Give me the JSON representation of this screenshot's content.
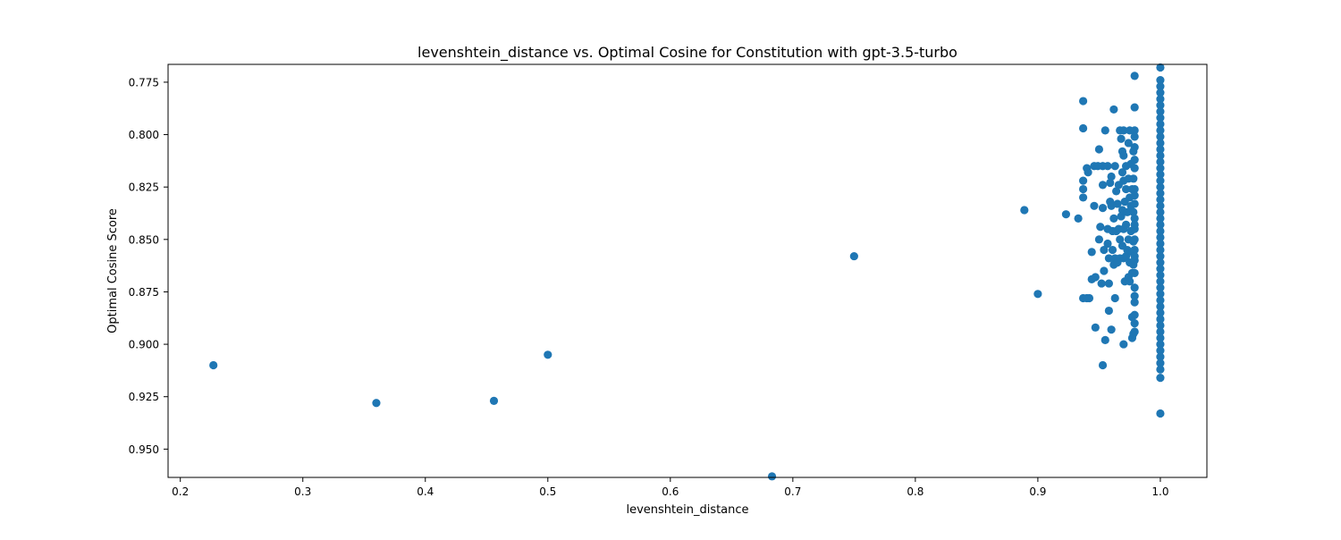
{
  "chart_data": {
    "type": "scatter",
    "title": "levenshtein_distance vs. Optimal Cosine for Constitution with gpt-3.5-turbo",
    "xlabel": "levenshtein_distance",
    "ylabel": "Optimal Cosine Score",
    "xlim": [
      0.19,
      1.038
    ],
    "ylim": [
      0.9635,
      0.7665
    ],
    "y_inverted": true,
    "grid": false,
    "legend": "none",
    "x_ticks": [
      0.2,
      0.3,
      0.4,
      0.5,
      0.6,
      0.7,
      0.8,
      0.9,
      1.0
    ],
    "x_tick_labels": [
      "0.2",
      "0.3",
      "0.4",
      "0.5",
      "0.6",
      "0.7",
      "0.8",
      "0.9",
      "1.0"
    ],
    "y_ticks": [
      0.775,
      0.8,
      0.825,
      0.85,
      0.875,
      0.9,
      0.925,
      0.95
    ],
    "y_tick_labels": [
      "0.775",
      "0.800",
      "0.825",
      "0.850",
      "0.875",
      "0.900",
      "0.925",
      "0.950"
    ],
    "series": [
      {
        "color": "#1f77b4",
        "points": [
          [
            0.227,
            0.91
          ],
          [
            0.36,
            0.928
          ],
          [
            0.456,
            0.927
          ],
          [
            0.5,
            0.905
          ],
          [
            0.683,
            0.963
          ],
          [
            0.75,
            0.858
          ],
          [
            0.889,
            0.836
          ],
          [
            0.9,
            0.876
          ],
          [
            0.923,
            0.838
          ],
          [
            0.933,
            0.84
          ],
          [
            0.937,
            0.784
          ],
          [
            0.937,
            0.797
          ],
          [
            0.937,
            0.822
          ],
          [
            0.937,
            0.826
          ],
          [
            0.937,
            0.83
          ],
          [
            0.937,
            0.878
          ],
          [
            0.94,
            0.878
          ],
          [
            0.94,
            0.816
          ],
          [
            0.941,
            0.818
          ],
          [
            0.942,
            0.878
          ],
          [
            0.944,
            0.856
          ],
          [
            0.944,
            0.869
          ],
          [
            0.946,
            0.834
          ],
          [
            0.946,
            0.815
          ],
          [
            0.947,
            0.868
          ],
          [
            0.947,
            0.892
          ],
          [
            0.949,
            0.815
          ],
          [
            0.95,
            0.807
          ],
          [
            0.95,
            0.85
          ],
          [
            0.951,
            0.844
          ],
          [
            0.952,
            0.871
          ],
          [
            0.953,
            0.815
          ],
          [
            0.953,
            0.824
          ],
          [
            0.953,
            0.835
          ],
          [
            0.953,
            0.91
          ],
          [
            0.954,
            0.855
          ],
          [
            0.954,
            0.865
          ],
          [
            0.955,
            0.798
          ],
          [
            0.955,
            0.898
          ],
          [
            0.957,
            0.815
          ],
          [
            0.957,
            0.845
          ],
          [
            0.957,
            0.852
          ],
          [
            0.958,
            0.859
          ],
          [
            0.958,
            0.871
          ],
          [
            0.958,
            0.884
          ],
          [
            0.959,
            0.823
          ],
          [
            0.959,
            0.832
          ],
          [
            0.96,
            0.893
          ],
          [
            0.96,
            0.82
          ],
          [
            0.96,
            0.834
          ],
          [
            0.961,
            0.846
          ],
          [
            0.961,
            0.855
          ],
          [
            0.962,
            0.788
          ],
          [
            0.962,
            0.862
          ],
          [
            0.962,
            0.84
          ],
          [
            0.963,
            0.815
          ],
          [
            0.963,
            0.859
          ],
          [
            0.963,
            0.878
          ],
          [
            0.964,
            0.827
          ],
          [
            0.964,
            0.846
          ],
          [
            0.965,
            0.861
          ],
          [
            0.965,
            0.833
          ],
          [
            0.966,
            0.824
          ],
          [
            0.966,
            0.845
          ],
          [
            0.967,
            0.85
          ],
          [
            0.967,
            0.798
          ],
          [
            0.967,
            0.859
          ],
          [
            0.968,
            0.802
          ],
          [
            0.968,
            0.839
          ],
          [
            0.969,
            0.808
          ],
          [
            0.969,
            0.818
          ],
          [
            0.969,
            0.836
          ],
          [
            0.969,
            0.853
          ],
          [
            0.97,
            0.859
          ],
          [
            0.97,
            0.822
          ],
          [
            0.97,
            0.798
          ],
          [
            0.97,
            0.81
          ],
          [
            0.97,
            0.9
          ],
          [
            0.97,
            0.845
          ],
          [
            0.971,
            0.832
          ],
          [
            0.971,
            0.87
          ],
          [
            0.972,
            0.815
          ],
          [
            0.972,
            0.826
          ],
          [
            0.972,
            0.858
          ],
          [
            0.972,
            0.843
          ],
          [
            0.973,
            0.837
          ],
          [
            0.973,
            0.855
          ],
          [
            0.974,
            0.868
          ],
          [
            0.974,
            0.804
          ],
          [
            0.974,
            0.821
          ],
          [
            0.974,
            0.85
          ],
          [
            0.975,
            0.798
          ],
          [
            0.975,
            0.83
          ],
          [
            0.975,
            0.861
          ],
          [
            0.975,
            0.87
          ],
          [
            0.976,
            0.846
          ],
          [
            0.976,
            0.834
          ],
          [
            0.976,
            0.814
          ],
          [
            0.977,
            0.826
          ],
          [
            0.977,
            0.856
          ],
          [
            0.977,
            0.866
          ],
          [
            0.977,
            0.887
          ],
          [
            0.977,
            0.897
          ],
          [
            0.978,
            0.821
          ],
          [
            0.978,
            0.851
          ],
          [
            0.978,
            0.808
          ],
          [
            0.978,
            0.837
          ],
          [
            0.978,
            0.862
          ],
          [
            0.978,
            0.895
          ],
          [
            0.979,
            0.772
          ],
          [
            0.979,
            0.787
          ],
          [
            0.979,
            0.798
          ],
          [
            0.979,
            0.801
          ],
          [
            0.979,
            0.806
          ],
          [
            0.979,
            0.812
          ],
          [
            0.979,
            0.816
          ],
          [
            0.979,
            0.826
          ],
          [
            0.979,
            0.829
          ],
          [
            0.979,
            0.833
          ],
          [
            0.979,
            0.84
          ],
          [
            0.979,
            0.845
          ],
          [
            0.979,
            0.85
          ],
          [
            0.979,
            0.855
          ],
          [
            0.979,
            0.86
          ],
          [
            0.979,
            0.866
          ],
          [
            0.979,
            0.873
          ],
          [
            0.979,
            0.877
          ],
          [
            0.979,
            0.88
          ],
          [
            0.979,
            0.886
          ],
          [
            0.979,
            0.89
          ],
          [
            0.979,
            0.894
          ],
          [
            0.979,
            0.858
          ],
          [
            0.979,
            0.843
          ],
          [
            1.0,
            0.768
          ],
          [
            1.0,
            0.774
          ],
          [
            1.0,
            0.777
          ],
          [
            1.0,
            0.78
          ],
          [
            1.0,
            0.783
          ],
          [
            1.0,
            0.786
          ],
          [
            1.0,
            0.789
          ],
          [
            1.0,
            0.792
          ],
          [
            1.0,
            0.795
          ],
          [
            1.0,
            0.798
          ],
          [
            1.0,
            0.801
          ],
          [
            1.0,
            0.804
          ],
          [
            1.0,
            0.807
          ],
          [
            1.0,
            0.81
          ],
          [
            1.0,
            0.813
          ],
          [
            1.0,
            0.816
          ],
          [
            1.0,
            0.819
          ],
          [
            1.0,
            0.822
          ],
          [
            1.0,
            0.825
          ],
          [
            1.0,
            0.828
          ],
          [
            1.0,
            0.831
          ],
          [
            1.0,
            0.834
          ],
          [
            1.0,
            0.837
          ],
          [
            1.0,
            0.84
          ],
          [
            1.0,
            0.843
          ],
          [
            1.0,
            0.846
          ],
          [
            1.0,
            0.849
          ],
          [
            1.0,
            0.852
          ],
          [
            1.0,
            0.855
          ],
          [
            1.0,
            0.858
          ],
          [
            1.0,
            0.861
          ],
          [
            1.0,
            0.864
          ],
          [
            1.0,
            0.867
          ],
          [
            1.0,
            0.87
          ],
          [
            1.0,
            0.873
          ],
          [
            1.0,
            0.876
          ],
          [
            1.0,
            0.879
          ],
          [
            1.0,
            0.882
          ],
          [
            1.0,
            0.885
          ],
          [
            1.0,
            0.888
          ],
          [
            1.0,
            0.891
          ],
          [
            1.0,
            0.894
          ],
          [
            1.0,
            0.897
          ],
          [
            1.0,
            0.9
          ],
          [
            1.0,
            0.903
          ],
          [
            1.0,
            0.906
          ],
          [
            1.0,
            0.909
          ],
          [
            1.0,
            0.912
          ],
          [
            1.0,
            0.916
          ],
          [
            1.0,
            0.933
          ]
        ]
      }
    ]
  }
}
